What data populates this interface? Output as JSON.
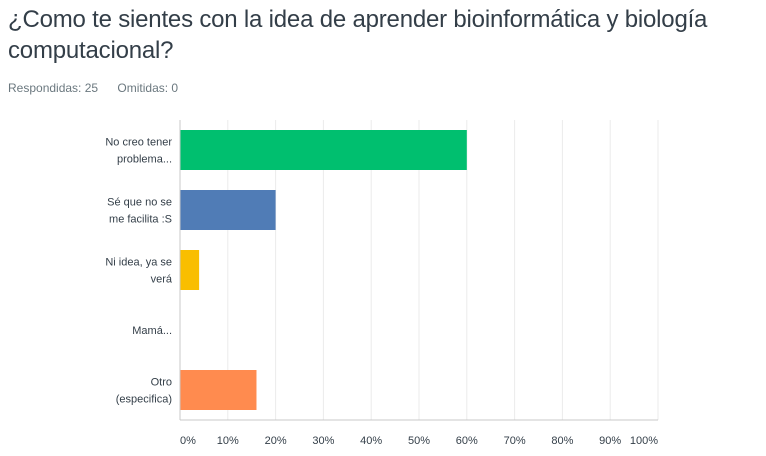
{
  "question": {
    "title": "¿Como te sientes con la idea de aprender bioinformática y biología computacional?"
  },
  "stats": {
    "answered": "Respondidas: 25",
    "skipped": "Omitidas: 0"
  },
  "chart_data": {
    "type": "bar",
    "orientation": "horizontal",
    "categories": [
      [
        "No creo tener",
        "problema..."
      ],
      [
        "Sé que no se",
        "me facilita :S"
      ],
      [
        "Ni idea, ya se",
        "verá"
      ],
      [
        "Mamá..."
      ],
      [
        "Otro",
        "(especifica)"
      ]
    ],
    "values": [
      60,
      20,
      4,
      0,
      16
    ],
    "colors": [
      "#00bf6f",
      "#507cb6",
      "#f9be00",
      "#6bc8cd",
      "#ff8b4f"
    ],
    "xlim": [
      0,
      100
    ],
    "xticks": [
      "0%",
      "10%",
      "20%",
      "30%",
      "40%",
      "50%",
      "60%",
      "70%",
      "80%",
      "90%",
      "100%"
    ],
    "grid": true,
    "grid_color": "#ebebeb",
    "axis_color": "#c8c8c8",
    "label_color": "#333e48"
  }
}
